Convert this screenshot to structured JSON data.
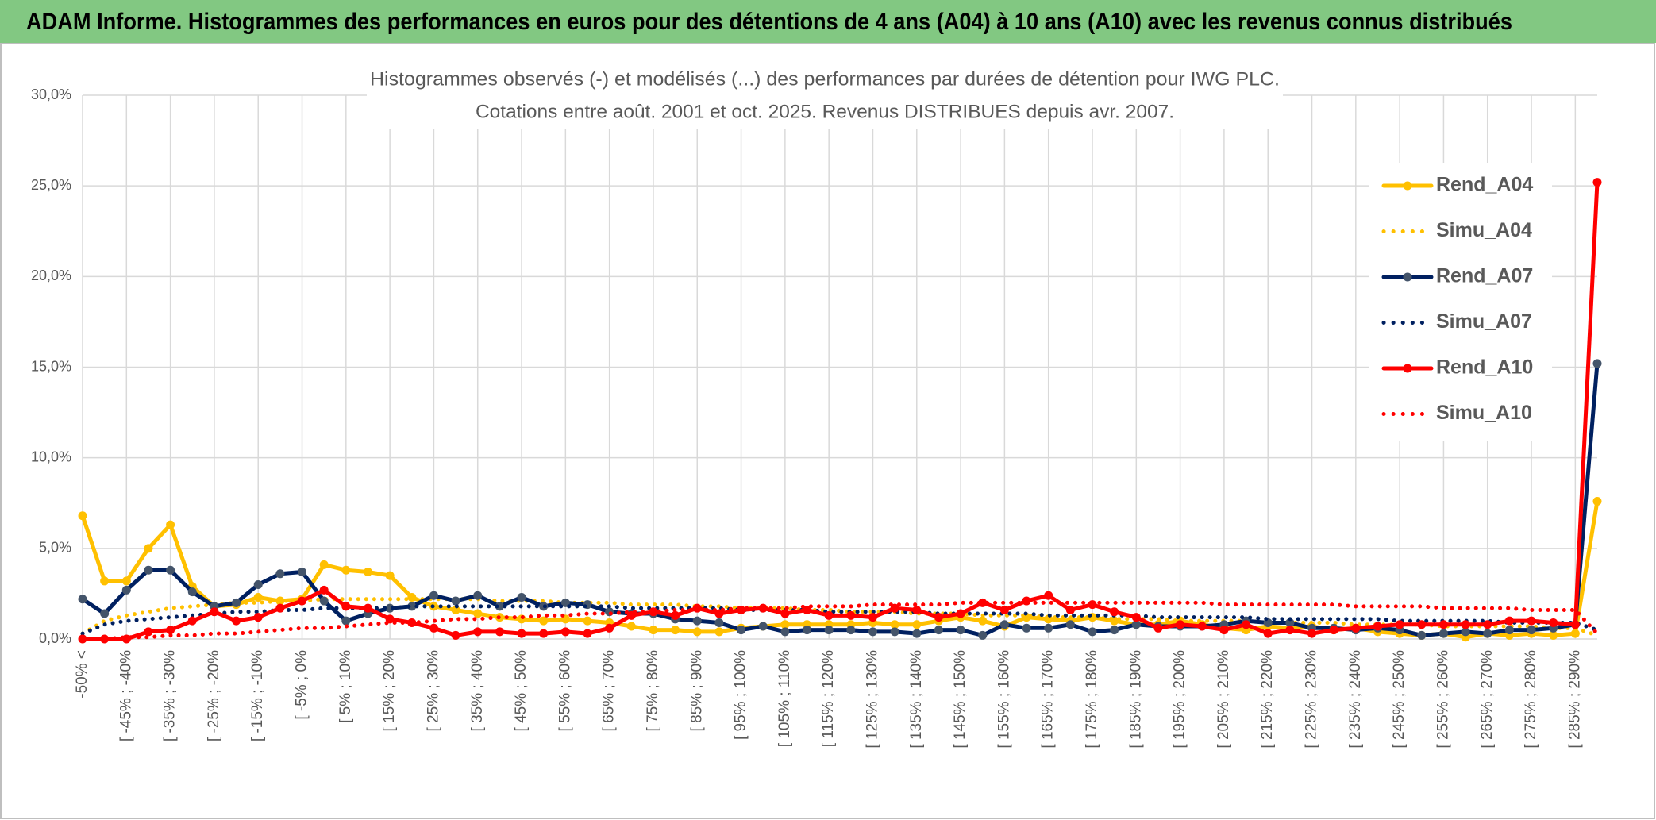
{
  "header": {
    "title": "ADAM Informe. Histogrammes des performances en euros pour des détentions de 4 ans (A04) à 10 ans (A10) avec les revenus connus distribués"
  },
  "chart_data": {
    "type": "line",
    "title": "Histogrammes observés (-) et modélisés (...) des performances par durées de détention pour IWG PLC.",
    "subtitle": "Cotations entre août. 2001 et oct. 2025. Revenus DISTRIBUES depuis avr. 2007.",
    "categories": [
      "-50% <",
      null,
      "[ -45% ; -40%",
      null,
      "[ -35% ; -30%",
      null,
      "[ -25% ; -20%",
      null,
      "[ -15% ; -10%",
      null,
      "[ -5% ; 0%",
      null,
      "[ 5% ; 10%",
      null,
      "[ 15% ; 20%",
      null,
      "[ 25% ; 30%",
      null,
      "[ 35% ; 40%",
      null,
      "[ 45% ; 50%",
      null,
      "[ 55% ; 60%",
      null,
      "[ 65% ; 70%",
      null,
      "[ 75% ; 80%",
      null,
      "[ 85% ; 90%",
      null,
      "[ 95% ; 100%",
      null,
      "[ 105% ; 110%",
      null,
      "[ 115% ; 120%",
      null,
      "[ 125% ; 130%",
      null,
      "[ 135% ; 140%",
      null,
      "[ 145% ; 150%",
      null,
      "[ 155% ; 160%",
      null,
      "[ 165% ; 170%",
      null,
      "[ 175% ; 180%",
      null,
      "[ 185% ; 190%",
      null,
      "[ 195% ; 200%",
      null,
      "[ 205% ; 210%",
      null,
      "[ 215% ; 220%",
      null,
      "[ 225% ; 230%",
      null,
      "[ 235% ; 240%",
      null,
      "[ 245% ; 250%",
      null,
      "[ 255% ; 260%",
      null,
      "[ 265% ; 270%",
      null,
      "[ 275% ; 280%",
      null,
      "[ 285% ; 290%",
      null
    ],
    "series": [
      {
        "name": "Rend_A04",
        "color": "#FFC000",
        "line_style": "solid",
        "marker": true,
        "values": [
          6.8,
          3.2,
          3.2,
          5.0,
          6.3,
          2.9,
          1.8,
          1.9,
          2.3,
          2.1,
          2.2,
          4.1,
          3.8,
          3.7,
          3.5,
          2.3,
          1.8,
          1.6,
          1.4,
          1.2,
          1.1,
          1.0,
          1.1,
          1.0,
          0.9,
          0.7,
          0.5,
          0.5,
          0.4,
          0.4,
          0.6,
          0.7,
          0.8,
          0.8,
          0.8,
          0.8,
          0.9,
          0.8,
          0.8,
          1.0,
          1.2,
          1.0,
          0.7,
          1.2,
          1.1,
          1.0,
          1.2,
          1.0,
          0.8,
          0.8,
          1.0,
          0.8,
          0.6,
          0.5,
          0.7,
          0.6,
          0.7,
          0.5,
          0.6,
          0.4,
          0.3,
          0.2,
          0.3,
          0.1,
          0.3,
          0.2,
          0.3,
          0.2,
          0.3,
          7.6
        ]
      },
      {
        "name": "Simu_A04",
        "color": "#FFC000",
        "line_style": "dotted",
        "marker": false,
        "values": [
          0.3,
          1.0,
          1.3,
          1.5,
          1.7,
          1.8,
          1.9,
          2.0,
          2.0,
          2.1,
          2.1,
          2.2,
          2.2,
          2.2,
          2.2,
          2.2,
          2.2,
          2.2,
          2.2,
          2.1,
          2.1,
          2.1,
          2.0,
          2.0,
          2.0,
          1.9,
          1.9,
          1.9,
          1.8,
          1.8,
          1.7,
          1.7,
          1.7,
          1.6,
          1.6,
          1.5,
          1.5,
          1.5,
          1.4,
          1.4,
          1.4,
          1.3,
          1.3,
          1.3,
          1.2,
          1.2,
          1.2,
          1.1,
          1.1,
          1.1,
          1.0,
          1.0,
          1.0,
          1.0,
          0.9,
          0.9,
          0.9,
          0.9,
          0.8,
          0.8,
          0.8,
          0.8,
          0.7,
          0.7,
          0.7,
          0.7,
          0.7,
          0.6,
          0.6,
          0.2
        ]
      },
      {
        "name": "Rend_A07",
        "color": "#002060",
        "line_style": "solid",
        "marker": true,
        "values": [
          2.2,
          1.4,
          2.7,
          3.8,
          3.8,
          2.6,
          1.8,
          2.0,
          3.0,
          3.6,
          3.7,
          2.1,
          1.0,
          1.4,
          1.7,
          1.8,
          2.4,
          2.1,
          2.4,
          1.8,
          2.3,
          1.8,
          2.0,
          1.9,
          1.5,
          1.4,
          1.4,
          1.1,
          1.0,
          0.9,
          0.5,
          0.7,
          0.4,
          0.5,
          0.5,
          0.5,
          0.4,
          0.4,
          0.3,
          0.5,
          0.5,
          0.2,
          0.8,
          0.6,
          0.6,
          0.8,
          0.4,
          0.5,
          0.8,
          0.7,
          0.7,
          0.7,
          0.8,
          1.0,
          0.9,
          0.9,
          0.6,
          0.6,
          0.5,
          0.6,
          0.5,
          0.2,
          0.3,
          0.4,
          0.3,
          0.5,
          0.5,
          0.6,
          0.8,
          15.2
        ]
      },
      {
        "name": "Simu_A07",
        "color": "#002060",
        "line_style": "dotted",
        "marker": false,
        "values": [
          0.3,
          0.8,
          1.0,
          1.1,
          1.2,
          1.3,
          1.4,
          1.5,
          1.5,
          1.6,
          1.6,
          1.7,
          1.7,
          1.7,
          1.7,
          1.8,
          1.8,
          1.8,
          1.8,
          1.8,
          1.8,
          1.8,
          1.8,
          1.8,
          1.8,
          1.7,
          1.7,
          1.7,
          1.7,
          1.7,
          1.6,
          1.6,
          1.6,
          1.6,
          1.5,
          1.5,
          1.5,
          1.5,
          1.5,
          1.4,
          1.4,
          1.4,
          1.4,
          1.4,
          1.3,
          1.3,
          1.3,
          1.3,
          1.3,
          1.2,
          1.2,
          1.2,
          1.2,
          1.2,
          1.1,
          1.1,
          1.1,
          1.1,
          1.1,
          1.1,
          1.0,
          1.0,
          1.0,
          1.0,
          1.0,
          0.9,
          0.9,
          0.9,
          0.9,
          0.5
        ]
      },
      {
        "name": "Rend_A10",
        "color": "#FF0000",
        "line_style": "solid",
        "marker": true,
        "values": [
          0.0,
          0.0,
          0.0,
          0.4,
          0.5,
          1.0,
          1.5,
          1.0,
          1.2,
          1.7,
          2.1,
          2.7,
          1.8,
          1.7,
          1.1,
          0.9,
          0.6,
          0.2,
          0.4,
          0.4,
          0.3,
          0.3,
          0.4,
          0.3,
          0.6,
          1.3,
          1.5,
          1.3,
          1.7,
          1.4,
          1.6,
          1.7,
          1.4,
          1.6,
          1.3,
          1.3,
          1.2,
          1.7,
          1.6,
          1.2,
          1.4,
          2.0,
          1.6,
          2.1,
          2.4,
          1.6,
          1.9,
          1.5,
          1.2,
          0.6,
          0.8,
          0.7,
          0.5,
          0.8,
          0.3,
          0.5,
          0.3,
          0.5,
          0.6,
          0.7,
          0.8,
          0.8,
          0.8,
          0.8,
          0.8,
          1.0,
          1.0,
          0.9,
          0.8,
          25.2
        ]
      },
      {
        "name": "Simu_A10",
        "color": "#FF0000",
        "line_style": "dotted",
        "marker": false,
        "values": [
          0.0,
          0.0,
          0.1,
          0.1,
          0.2,
          0.2,
          0.3,
          0.3,
          0.4,
          0.5,
          0.6,
          0.6,
          0.7,
          0.8,
          0.9,
          0.9,
          1.0,
          1.1,
          1.1,
          1.2,
          1.2,
          1.3,
          1.3,
          1.4,
          1.4,
          1.5,
          1.5,
          1.6,
          1.6,
          1.6,
          1.7,
          1.7,
          1.7,
          1.8,
          1.8,
          1.8,
          1.9,
          1.9,
          1.9,
          1.9,
          2.0,
          2.0,
          2.0,
          2.0,
          2.0,
          2.0,
          2.0,
          2.0,
          2.0,
          2.0,
          2.0,
          2.0,
          1.9,
          1.9,
          1.9,
          1.9,
          1.9,
          1.9,
          1.8,
          1.8,
          1.8,
          1.8,
          1.7,
          1.7,
          1.7,
          1.7,
          1.6,
          1.6,
          1.6,
          0.3
        ]
      }
    ],
    "ylim": [
      0,
      30
    ],
    "yticks": [
      {
        "value": 0,
        "label": "0,0%"
      },
      {
        "value": 5,
        "label": "5,0%"
      },
      {
        "value": 10,
        "label": "10,0%"
      },
      {
        "value": 15,
        "label": "15,0%"
      },
      {
        "value": 20,
        "label": "20,0%"
      },
      {
        "value": 25,
        "label": "25,0%"
      },
      {
        "value": 30,
        "label": "30,0%"
      }
    ],
    "grid": true,
    "legend": "right"
  }
}
